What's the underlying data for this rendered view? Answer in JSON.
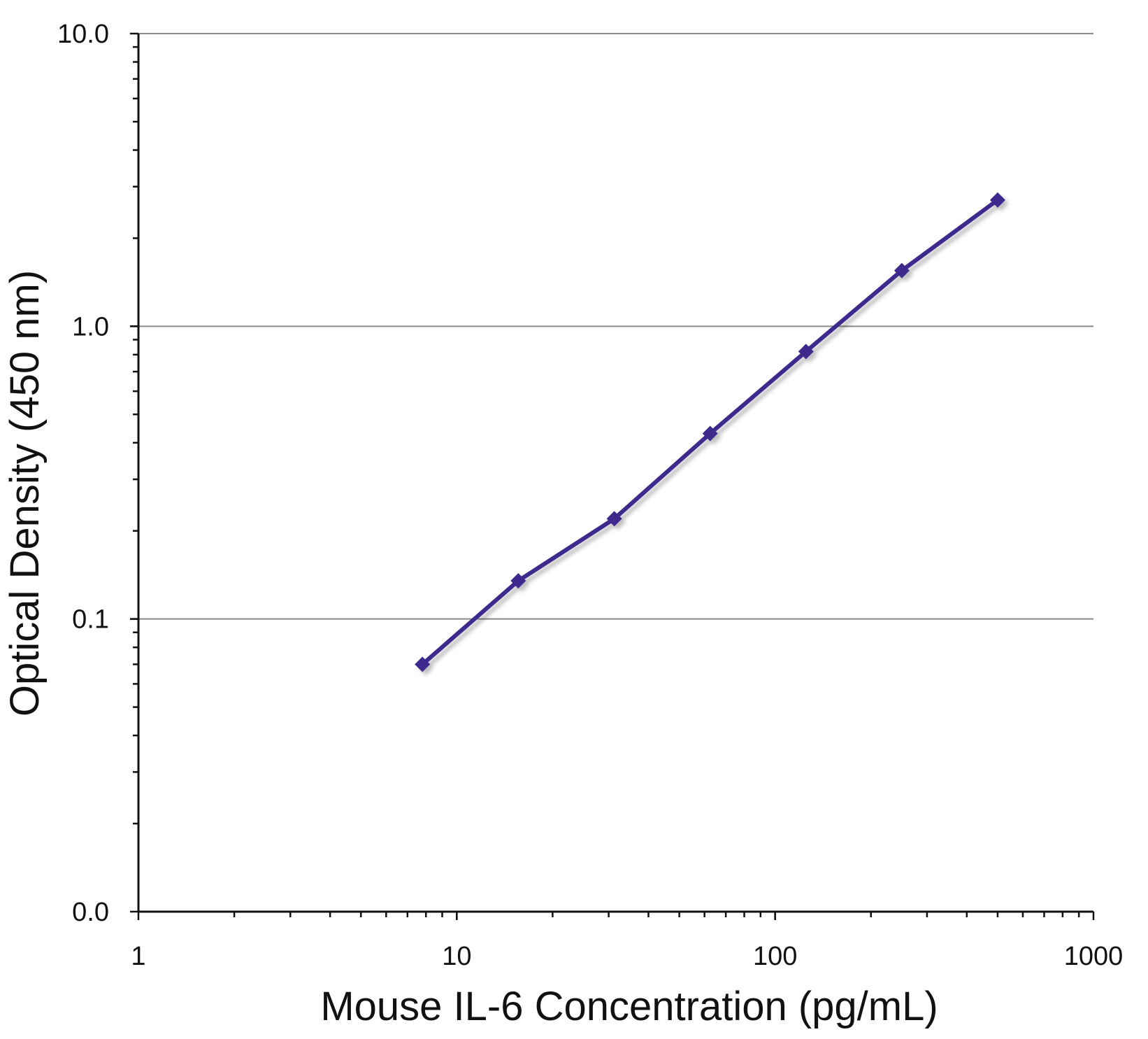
{
  "chart_data": {
    "type": "scatter",
    "title": "",
    "xlabel": "Mouse IL-6 Concentration (pg/mL)",
    "ylabel": "Optical Density (450 nm)",
    "x_scale": "log",
    "y_scale": "log",
    "xlim": [
      1,
      1000
    ],
    "ylim": [
      0.01,
      10
    ],
    "x_ticks": [
      {
        "value": 1,
        "label": "1"
      },
      {
        "value": 10,
        "label": "10"
      },
      {
        "value": 100,
        "label": "100"
      },
      {
        "value": 1000,
        "label": "1000"
      }
    ],
    "y_ticks": [
      {
        "value": 0.01,
        "label": "0.0"
      },
      {
        "value": 0.1,
        "label": "0.1"
      },
      {
        "value": 1,
        "label": "1.0"
      },
      {
        "value": 10,
        "label": "10.0"
      }
    ],
    "grid": "horizontal major",
    "legend": "none",
    "color": "#3d2a8c",
    "series": [
      {
        "x": [
          7.8,
          15.6,
          31.25,
          62.5,
          125,
          250,
          500
        ],
        "y": [
          0.07,
          0.135,
          0.22,
          0.43,
          0.82,
          1.55,
          2.7
        ]
      }
    ]
  }
}
